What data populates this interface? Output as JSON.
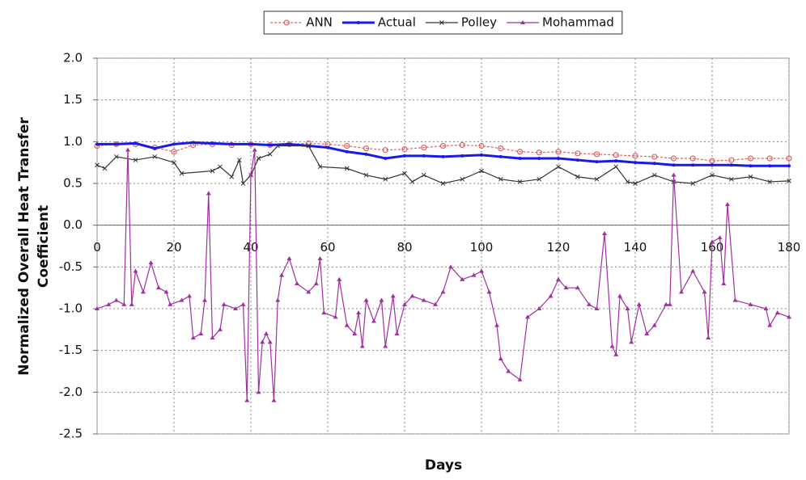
{
  "chart_data": {
    "type": "line",
    "x_label": "Days",
    "y_label": [
      "Normalized Overall Heat Transfer",
      "Coefficient"
    ],
    "xlim": [
      0,
      180
    ],
    "xticks": [
      0,
      20,
      40,
      60,
      80,
      100,
      120,
      140,
      160,
      180
    ],
    "ylim": [
      -2.5,
      2.0
    ],
    "yticks": [
      {
        "value": 2,
        "label": "2.0"
      },
      1.5,
      {
        "value": 1,
        "label": "1.0"
      },
      0.5,
      {
        "value": 0,
        "label": "0.0"
      },
      -0.5,
      {
        "value": -1,
        "label": "-1.0"
      },
      -1.5,
      {
        "value": -2,
        "label": "-2.0"
      },
      -2.5
    ],
    "grid": true,
    "legend": "top",
    "series": [
      {
        "name": "ANN",
        "color": "#e06060",
        "marker": "circle",
        "dash": true,
        "x": [
          0,
          5,
          10,
          15,
          20,
          25,
          30,
          35,
          40,
          45,
          50,
          55,
          60,
          65,
          70,
          75,
          80,
          85,
          90,
          95,
          100,
          105,
          110,
          115,
          120,
          125,
          130,
          135,
          140,
          145,
          150,
          155,
          160,
          165,
          170,
          175,
          180
        ],
        "values": [
          0.95,
          0.97,
          0.97,
          0.93,
          0.88,
          0.96,
          0.97,
          0.96,
          0.97,
          0.96,
          0.97,
          0.98,
          0.97,
          0.95,
          0.92,
          0.9,
          0.91,
          0.93,
          0.95,
          0.96,
          0.95,
          0.92,
          0.88,
          0.87,
          0.88,
          0.86,
          0.85,
          0.84,
          0.83,
          0.82,
          0.8,
          0.8,
          0.77,
          0.78,
          0.8,
          0.8,
          0.8
        ]
      },
      {
        "name": "Actual",
        "color": "#1a1ae6",
        "marker": "dot",
        "dash": false,
        "x": [
          0,
          5,
          10,
          15,
          20,
          25,
          30,
          35,
          40,
          45,
          50,
          55,
          60,
          65,
          70,
          75,
          80,
          85,
          90,
          95,
          100,
          105,
          110,
          115,
          120,
          125,
          130,
          135,
          140,
          145,
          150,
          155,
          160,
          165,
          170,
          175,
          180
        ],
        "values": [
          0.97,
          0.97,
          0.98,
          0.92,
          0.97,
          0.99,
          0.98,
          0.97,
          0.97,
          0.96,
          0.97,
          0.95,
          0.93,
          0.88,
          0.85,
          0.8,
          0.83,
          0.83,
          0.82,
          0.83,
          0.84,
          0.82,
          0.8,
          0.8,
          0.8,
          0.78,
          0.76,
          0.77,
          0.75,
          0.74,
          0.72,
          0.72,
          0.72,
          0.72,
          0.71,
          0.71,
          0.71
        ]
      },
      {
        "name": "Polley",
        "color": "#333333",
        "marker": "x",
        "dash": false,
        "x": [
          0,
          2,
          5,
          10,
          15,
          20,
          22,
          30,
          32,
          35,
          37,
          38,
          40,
          42,
          45,
          47,
          55,
          58,
          65,
          70,
          75,
          80,
          82,
          85,
          90,
          95,
          100,
          105,
          110,
          115,
          120,
          125,
          130,
          135,
          138,
          140,
          145,
          150,
          155,
          160,
          165,
          170,
          175,
          180
        ],
        "values": [
          0.72,
          0.68,
          0.82,
          0.78,
          0.82,
          0.75,
          0.62,
          0.65,
          0.7,
          0.58,
          0.78,
          0.5,
          0.6,
          0.8,
          0.85,
          0.95,
          0.95,
          0.7,
          0.68,
          0.6,
          0.55,
          0.62,
          0.52,
          0.6,
          0.5,
          0.55,
          0.65,
          0.55,
          0.52,
          0.55,
          0.7,
          0.58,
          0.55,
          0.7,
          0.52,
          0.5,
          0.6,
          0.52,
          0.5,
          0.6,
          0.55,
          0.58,
          0.52,
          0.53
        ]
      },
      {
        "name": "Mohammad",
        "color": "#a030a0",
        "marker": "triangle",
        "dash": false,
        "x": [
          0,
          3,
          5,
          7,
          8,
          9,
          10,
          12,
          14,
          16,
          18,
          19,
          22,
          24,
          25,
          27,
          28,
          29,
          30,
          32,
          33,
          36,
          38,
          39,
          40,
          41,
          42,
          43,
          44,
          45,
          46,
          47,
          48,
          50,
          52,
          55,
          57,
          58,
          59,
          62,
          63,
          65,
          67,
          68,
          69,
          70,
          72,
          74,
          75,
          77,
          78,
          80,
          82,
          85,
          88,
          90,
          92,
          95,
          98,
          100,
          102,
          104,
          105,
          107,
          110,
          112,
          115,
          118,
          120,
          122,
          125,
          128,
          130,
          132,
          134,
          135,
          136,
          138,
          139,
          141,
          143,
          145,
          148,
          149,
          150,
          152,
          155,
          158,
          159,
          160,
          162,
          163,
          164,
          166,
          170,
          174,
          175,
          177,
          180
        ],
        "values": [
          -1.0,
          -0.95,
          -0.9,
          -0.95,
          0.9,
          -0.95,
          -0.55,
          -0.8,
          -0.45,
          -0.75,
          -0.8,
          -0.95,
          -0.9,
          -0.85,
          -1.35,
          -1.3,
          -0.9,
          0.38,
          -1.35,
          -1.25,
          -0.95,
          -1.0,
          -0.95,
          -2.1,
          0.6,
          0.9,
          -2.0,
          -1.4,
          -1.3,
          -1.4,
          -2.1,
          -0.9,
          -0.6,
          -0.4,
          -0.7,
          -0.8,
          -0.7,
          -0.4,
          -1.05,
          -1.1,
          -0.65,
          -1.2,
          -1.3,
          -1.05,
          -1.45,
          -0.9,
          -1.15,
          -0.9,
          -1.45,
          -0.85,
          -1.3,
          -0.95,
          -0.85,
          -0.9,
          -0.95,
          -0.8,
          -0.5,
          -0.65,
          -0.6,
          -0.55,
          -0.8,
          -1.2,
          -1.6,
          -1.75,
          -1.85,
          -1.1,
          -1.0,
          -0.85,
          -0.65,
          -0.75,
          -0.75,
          -0.95,
          -1.0,
          -0.1,
          -1.45,
          -1.55,
          -0.85,
          -1.0,
          -1.4,
          -0.95,
          -1.3,
          -1.2,
          -0.95,
          -0.95,
          0.6,
          -0.8,
          -0.55,
          -0.8,
          -1.35,
          -0.2,
          -0.15,
          -0.7,
          0.25,
          -0.9,
          -0.95,
          -1.0,
          -1.2,
          -1.05,
          -1.1
        ]
      }
    ]
  }
}
